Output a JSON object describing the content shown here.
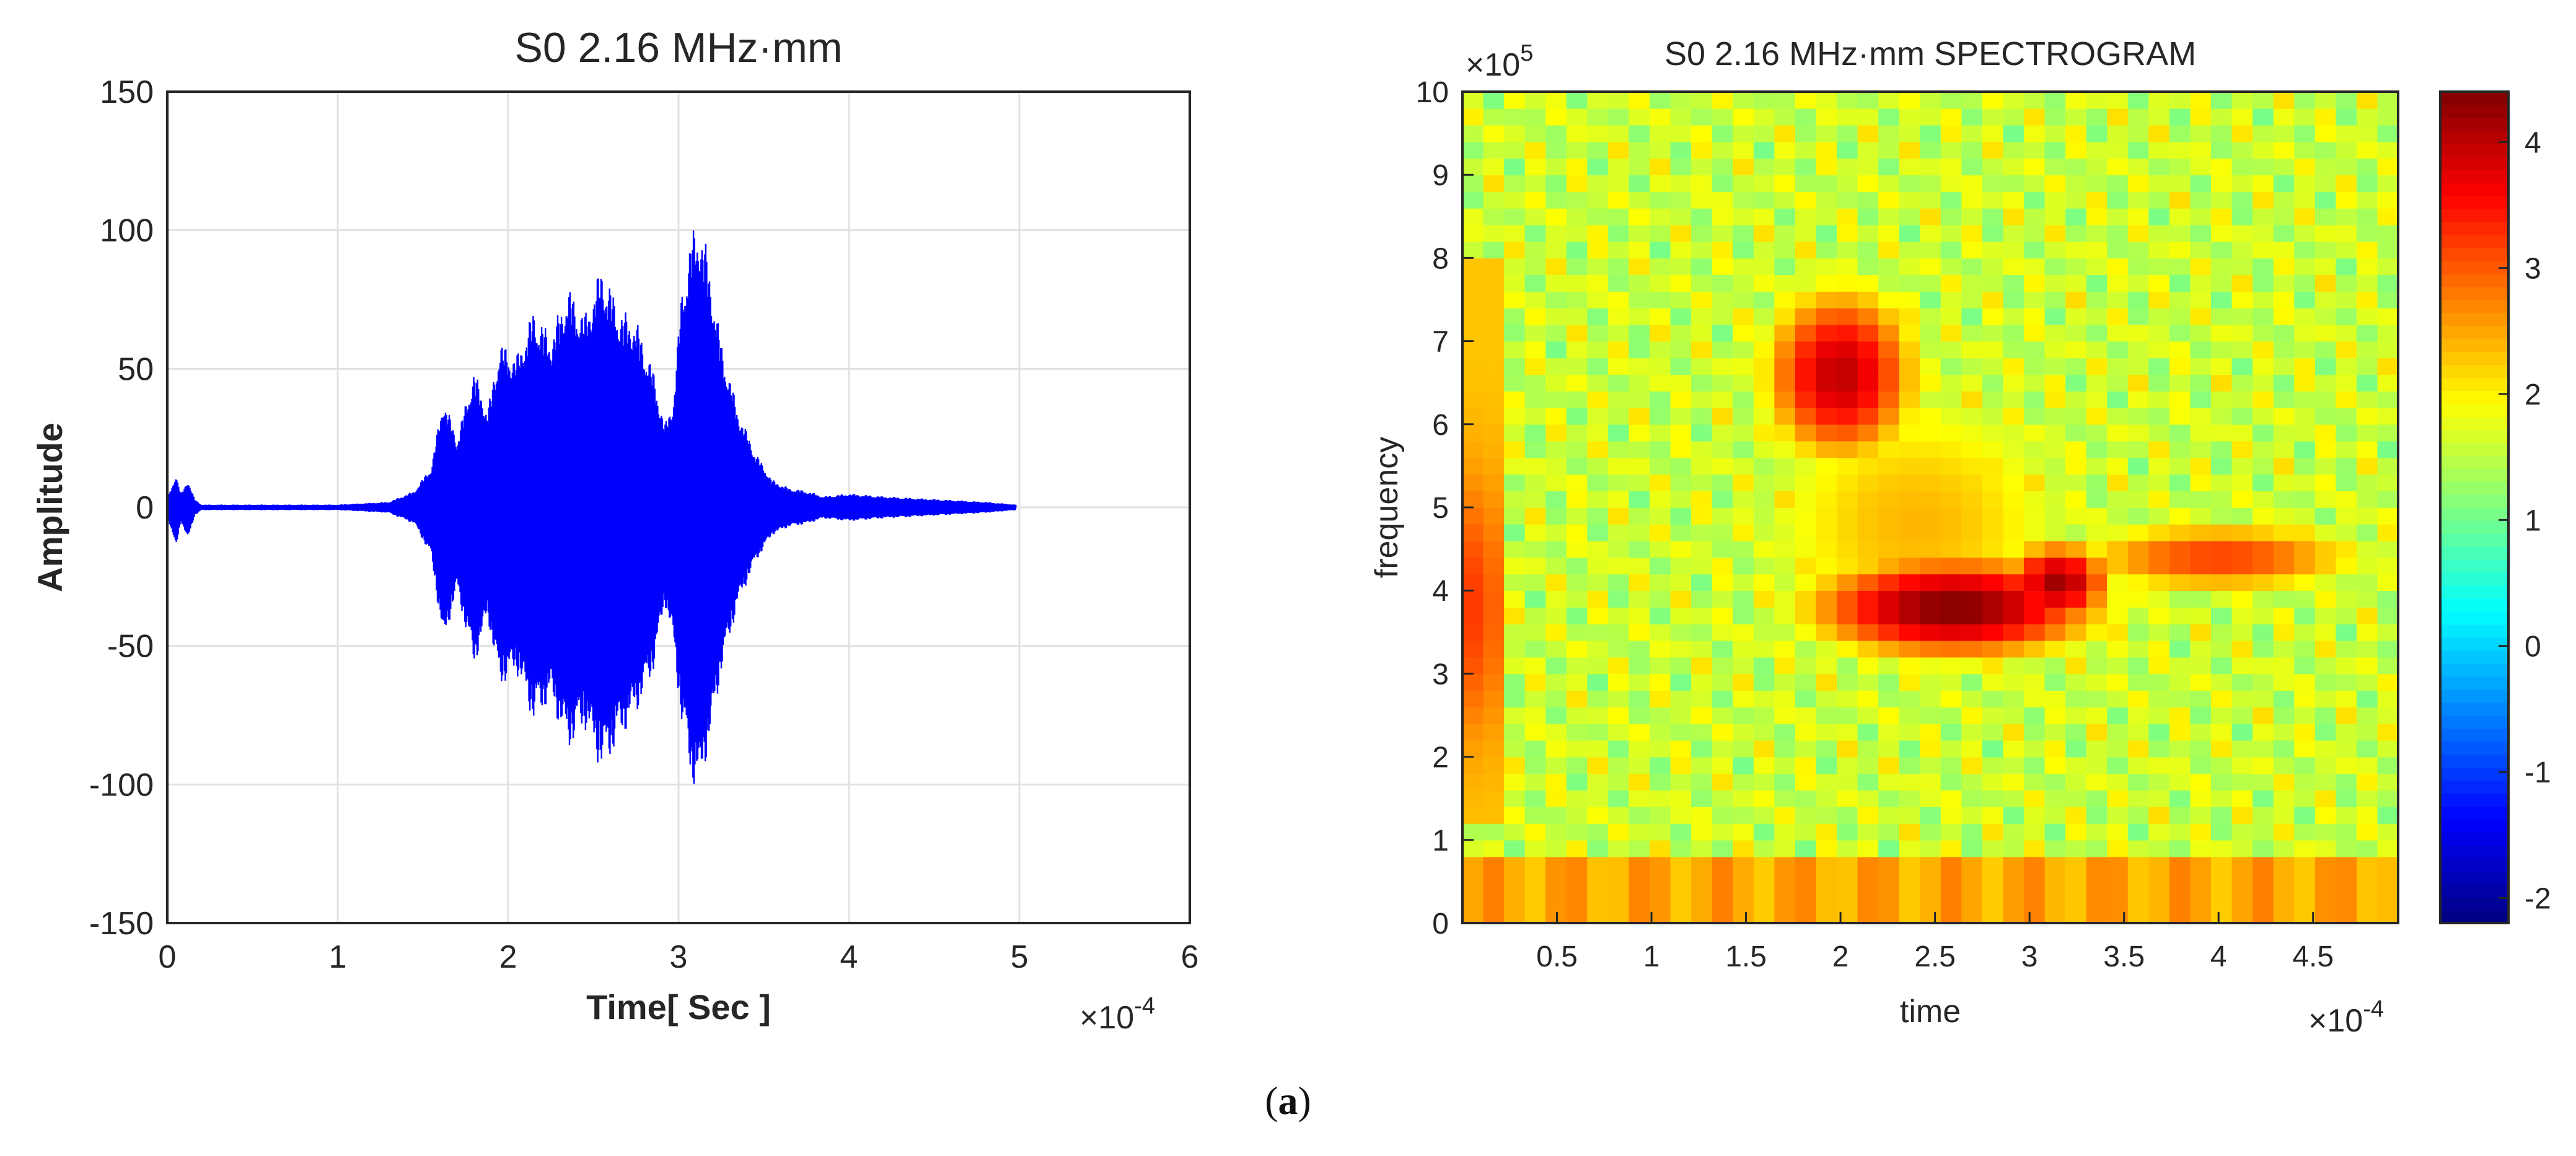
{
  "figure_label": {
    "open": "(",
    "letter": "a",
    "close": ")"
  },
  "chart_data": [
    {
      "type": "line",
      "title": "S0 2.16 MHz·mm",
      "xlabel": "Time[ Sec ]",
      "ylabel": "Amplitude",
      "x_multiplier": "×10",
      "x_multiplier_exp": "-4",
      "xlim": [
        0,
        6
      ],
      "ylim": [
        -150,
        150
      ],
      "xticks": [
        "0",
        "1",
        "2",
        "3",
        "4",
        "5",
        "6"
      ],
      "yticks": [
        "150",
        "100",
        "50",
        "0",
        "-50",
        "-100",
        "-150"
      ],
      "grid": true,
      "line_color": "#0000ff",
      "envelope": {
        "x": [
          0.0,
          0.05,
          0.08,
          0.12,
          0.16,
          0.2,
          0.5,
          1.0,
          1.3,
          1.45,
          1.55,
          1.62,
          1.7,
          1.8,
          1.88,
          1.95,
          2.05,
          2.15,
          2.25,
          2.35,
          2.45,
          2.55,
          2.65,
          2.75,
          2.85,
          2.92,
          2.97,
          3.02,
          3.08,
          3.12,
          3.16,
          3.2,
          3.25,
          3.35,
          3.45,
          3.55,
          3.65,
          3.75,
          3.85,
          4.0,
          4.2,
          4.5,
          4.8,
          4.98
        ],
        "upper": [
          3,
          12,
          5,
          10,
          3,
          1,
          1,
          1,
          2,
          6,
          15,
          40,
          25,
          50,
          35,
          60,
          55,
          72,
          62,
          80,
          70,
          88,
          72,
          68,
          50,
          30,
          40,
          80,
          100,
          104,
          95,
          80,
          60,
          35,
          20,
          10,
          7,
          6,
          4,
          5,
          4,
          3,
          2,
          1
        ],
        "lower": [
          -3,
          -15,
          -5,
          -12,
          -3,
          -1,
          -1,
          -1,
          -2,
          -6,
          -18,
          -50,
          -30,
          -58,
          -40,
          -65,
          -60,
          -78,
          -70,
          -88,
          -80,
          -96,
          -85,
          -75,
          -60,
          -35,
          -50,
          -80,
          -100,
          -104,
          -92,
          -80,
          -60,
          -35,
          -20,
          -10,
          -7,
          -6,
          -4,
          -5,
          -4,
          -3,
          -2,
          -1
        ]
      }
    },
    {
      "type": "heatmap",
      "title": "S0 2.16 MHz·mm SPECTROGRAM",
      "xlabel": "time",
      "ylabel": "frequency",
      "x_multiplier": "×10",
      "x_multiplier_exp": "-4",
      "y_multiplier": "×10",
      "y_multiplier_exp": "5",
      "xlim": [
        0,
        4.95
      ],
      "ylim": [
        0,
        10
      ],
      "xticks": [
        "0.5",
        "1",
        "1.5",
        "2",
        "2.5",
        "3",
        "3.5",
        "4",
        "4.5"
      ],
      "yticks": [
        "10",
        "9",
        "8",
        "7",
        "6",
        "5",
        "4",
        "3",
        "2",
        "1",
        "0"
      ],
      "colorbar": {
        "range": [
          -2.2,
          4.4
        ],
        "ticks": [
          "4",
          "3",
          "2",
          "1",
          "0",
          "-1",
          "-2"
        ],
        "colormap": "jet"
      },
      "columns": 45,
      "rows": 50,
      "background_level": 1.6,
      "features": [
        {
          "name": "low-frequency band",
          "x": [
            0,
            4.95
          ],
          "y": [
            0,
            0.8
          ],
          "level": 2.6
        },
        {
          "name": "left edge band",
          "x": [
            0,
            0.2
          ],
          "y": [
            2.5,
            7.5
          ],
          "level": 3.0
        },
        {
          "name": "upper lobe",
          "x": [
            1.3,
            2.65
          ],
          "y": [
            4.5,
            8.8
          ],
          "level": 4.0
        },
        {
          "name": "lower lobe peak",
          "x": [
            1.5,
            3.4
          ],
          "y": [
            2.2,
            5.5
          ],
          "level": 4.4
        },
        {
          "name": "trailing band",
          "x": [
            3.4,
            4.95
          ],
          "y": [
            3.3,
            5.5
          ],
          "level": 3.0
        }
      ]
    }
  ]
}
